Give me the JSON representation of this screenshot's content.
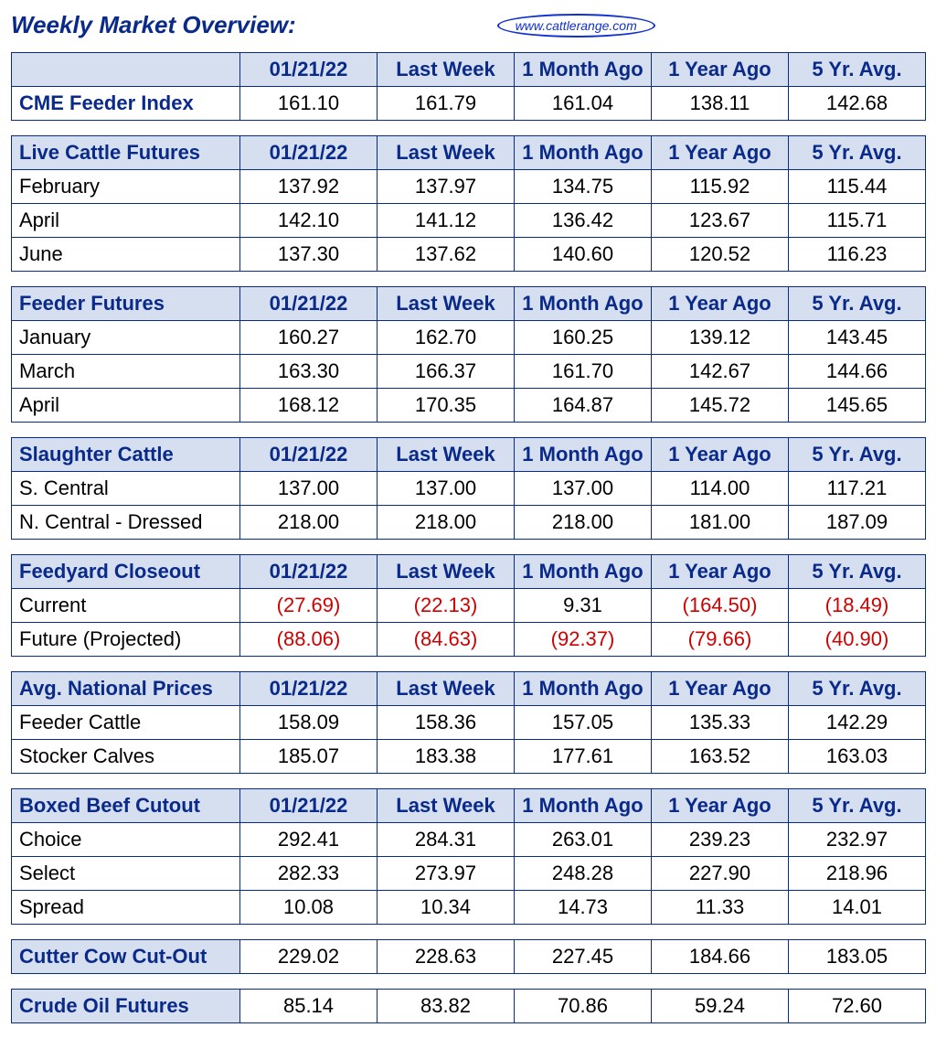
{
  "page_title": "Weekly Market Overview:",
  "watermark": "www.cattlerange.com",
  "colors": {
    "header_text": "#0a2a8a",
    "header_bg": "#d6dfef",
    "border": "#0a2a8a",
    "negative": "#d00000",
    "body_bg": "#ffffff"
  },
  "column_headers": [
    "01/21/22",
    "Last Week",
    "1 Month Ago",
    "1 Year Ago",
    "5 Yr. Avg."
  ],
  "tables": [
    {
      "name": "cme-feeder-index",
      "row_header": "",
      "rows": [
        {
          "label": "CME Feeder Index",
          "bold": true,
          "cells": [
            {
              "v": "161.10"
            },
            {
              "v": "161.79"
            },
            {
              "v": "161.04"
            },
            {
              "v": "138.11"
            },
            {
              "v": "142.68"
            }
          ]
        }
      ]
    },
    {
      "name": "live-cattle-futures",
      "row_header": "Live Cattle Futures",
      "rows": [
        {
          "label": "February",
          "bold": false,
          "cells": [
            {
              "v": "137.92"
            },
            {
              "v": "137.97"
            },
            {
              "v": "134.75"
            },
            {
              "v": "115.92"
            },
            {
              "v": "115.44"
            }
          ]
        },
        {
          "label": "April",
          "bold": false,
          "cells": [
            {
              "v": "142.10"
            },
            {
              "v": "141.12"
            },
            {
              "v": "136.42"
            },
            {
              "v": "123.67"
            },
            {
              "v": "115.71"
            }
          ]
        },
        {
          "label": "June",
          "bold": false,
          "cells": [
            {
              "v": "137.30"
            },
            {
              "v": "137.62"
            },
            {
              "v": "140.60"
            },
            {
              "v": "120.52"
            },
            {
              "v": "116.23"
            }
          ]
        }
      ]
    },
    {
      "name": "feeder-futures",
      "row_header": "Feeder Futures",
      "rows": [
        {
          "label": "January",
          "bold": false,
          "cells": [
            {
              "v": "160.27"
            },
            {
              "v": "162.70"
            },
            {
              "v": "160.25"
            },
            {
              "v": "139.12"
            },
            {
              "v": "143.45"
            }
          ]
        },
        {
          "label": "March",
          "bold": false,
          "cells": [
            {
              "v": "163.30"
            },
            {
              "v": "166.37"
            },
            {
              "v": "161.70"
            },
            {
              "v": "142.67"
            },
            {
              "v": "144.66"
            }
          ]
        },
        {
          "label": "April",
          "bold": false,
          "cells": [
            {
              "v": "168.12"
            },
            {
              "v": "170.35"
            },
            {
              "v": "164.87"
            },
            {
              "v": "145.72"
            },
            {
              "v": "145.65"
            }
          ]
        }
      ]
    },
    {
      "name": "slaughter-cattle",
      "row_header": "Slaughter Cattle",
      "rows": [
        {
          "label": "S. Central",
          "bold": false,
          "cells": [
            {
              "v": "137.00"
            },
            {
              "v": "137.00"
            },
            {
              "v": "137.00"
            },
            {
              "v": "114.00"
            },
            {
              "v": "117.21"
            }
          ]
        },
        {
          "label": "N. Central - Dressed",
          "bold": false,
          "cells": [
            {
              "v": "218.00"
            },
            {
              "v": "218.00"
            },
            {
              "v": "218.00"
            },
            {
              "v": "181.00"
            },
            {
              "v": "187.09"
            }
          ]
        }
      ]
    },
    {
      "name": "feedyard-closeout",
      "row_header": "Feedyard Closeout",
      "rows": [
        {
          "label": "Current",
          "bold": false,
          "cells": [
            {
              "v": "(27.69)",
              "neg": true
            },
            {
              "v": "(22.13)",
              "neg": true
            },
            {
              "v": "9.31"
            },
            {
              "v": "(164.50)",
              "neg": true
            },
            {
              "v": "(18.49)",
              "neg": true
            }
          ]
        },
        {
          "label": "Future (Projected)",
          "bold": false,
          "cells": [
            {
              "v": "(88.06)",
              "neg": true
            },
            {
              "v": "(84.63)",
              "neg": true
            },
            {
              "v": "(92.37)",
              "neg": true
            },
            {
              "v": "(79.66)",
              "neg": true
            },
            {
              "v": "(40.90)",
              "neg": true
            }
          ]
        }
      ]
    },
    {
      "name": "avg-national-prices",
      "row_header": "Avg. National Prices",
      "rows": [
        {
          "label": "Feeder Cattle",
          "bold": false,
          "cells": [
            {
              "v": "158.09"
            },
            {
              "v": "158.36"
            },
            {
              "v": "157.05"
            },
            {
              "v": "135.33"
            },
            {
              "v": "142.29"
            }
          ]
        },
        {
          "label": "Stocker Calves",
          "bold": false,
          "cells": [
            {
              "v": "185.07"
            },
            {
              "v": "183.38"
            },
            {
              "v": "177.61"
            },
            {
              "v": "163.52"
            },
            {
              "v": "163.03"
            }
          ]
        }
      ]
    },
    {
      "name": "boxed-beef-cutout",
      "row_header": "Boxed Beef Cutout",
      "rows": [
        {
          "label": "Choice",
          "bold": false,
          "cells": [
            {
              "v": "292.41"
            },
            {
              "v": "284.31"
            },
            {
              "v": "263.01"
            },
            {
              "v": "239.23"
            },
            {
              "v": "232.97"
            }
          ]
        },
        {
          "label": "Select",
          "bold": false,
          "cells": [
            {
              "v": "282.33"
            },
            {
              "v": "273.97"
            },
            {
              "v": "248.28"
            },
            {
              "v": "227.90"
            },
            {
              "v": "218.96"
            }
          ]
        },
        {
          "label": " Spread",
          "bold": false,
          "cells": [
            {
              "v": "10.08"
            },
            {
              "v": "10.34"
            },
            {
              "v": "14.73"
            },
            {
              "v": "11.33"
            },
            {
              "v": "14.01"
            }
          ]
        }
      ]
    },
    {
      "name": "cutter-cow-cutout",
      "row_header": null,
      "rows": [
        {
          "label": "Cutter Cow Cut-Out",
          "bold": true,
          "header_style": true,
          "cells": [
            {
              "v": "229.02"
            },
            {
              "v": "228.63"
            },
            {
              "v": "227.45"
            },
            {
              "v": "184.66"
            },
            {
              "v": "183.05"
            }
          ]
        }
      ]
    },
    {
      "name": "crude-oil-futures",
      "row_header": null,
      "rows": [
        {
          "label": "Crude Oil Futures",
          "bold": true,
          "header_style": true,
          "cells": [
            {
              "v": "85.14"
            },
            {
              "v": "83.82"
            },
            {
              "v": "70.86"
            },
            {
              "v": "59.24"
            },
            {
              "v": "72.60"
            }
          ]
        }
      ]
    }
  ]
}
